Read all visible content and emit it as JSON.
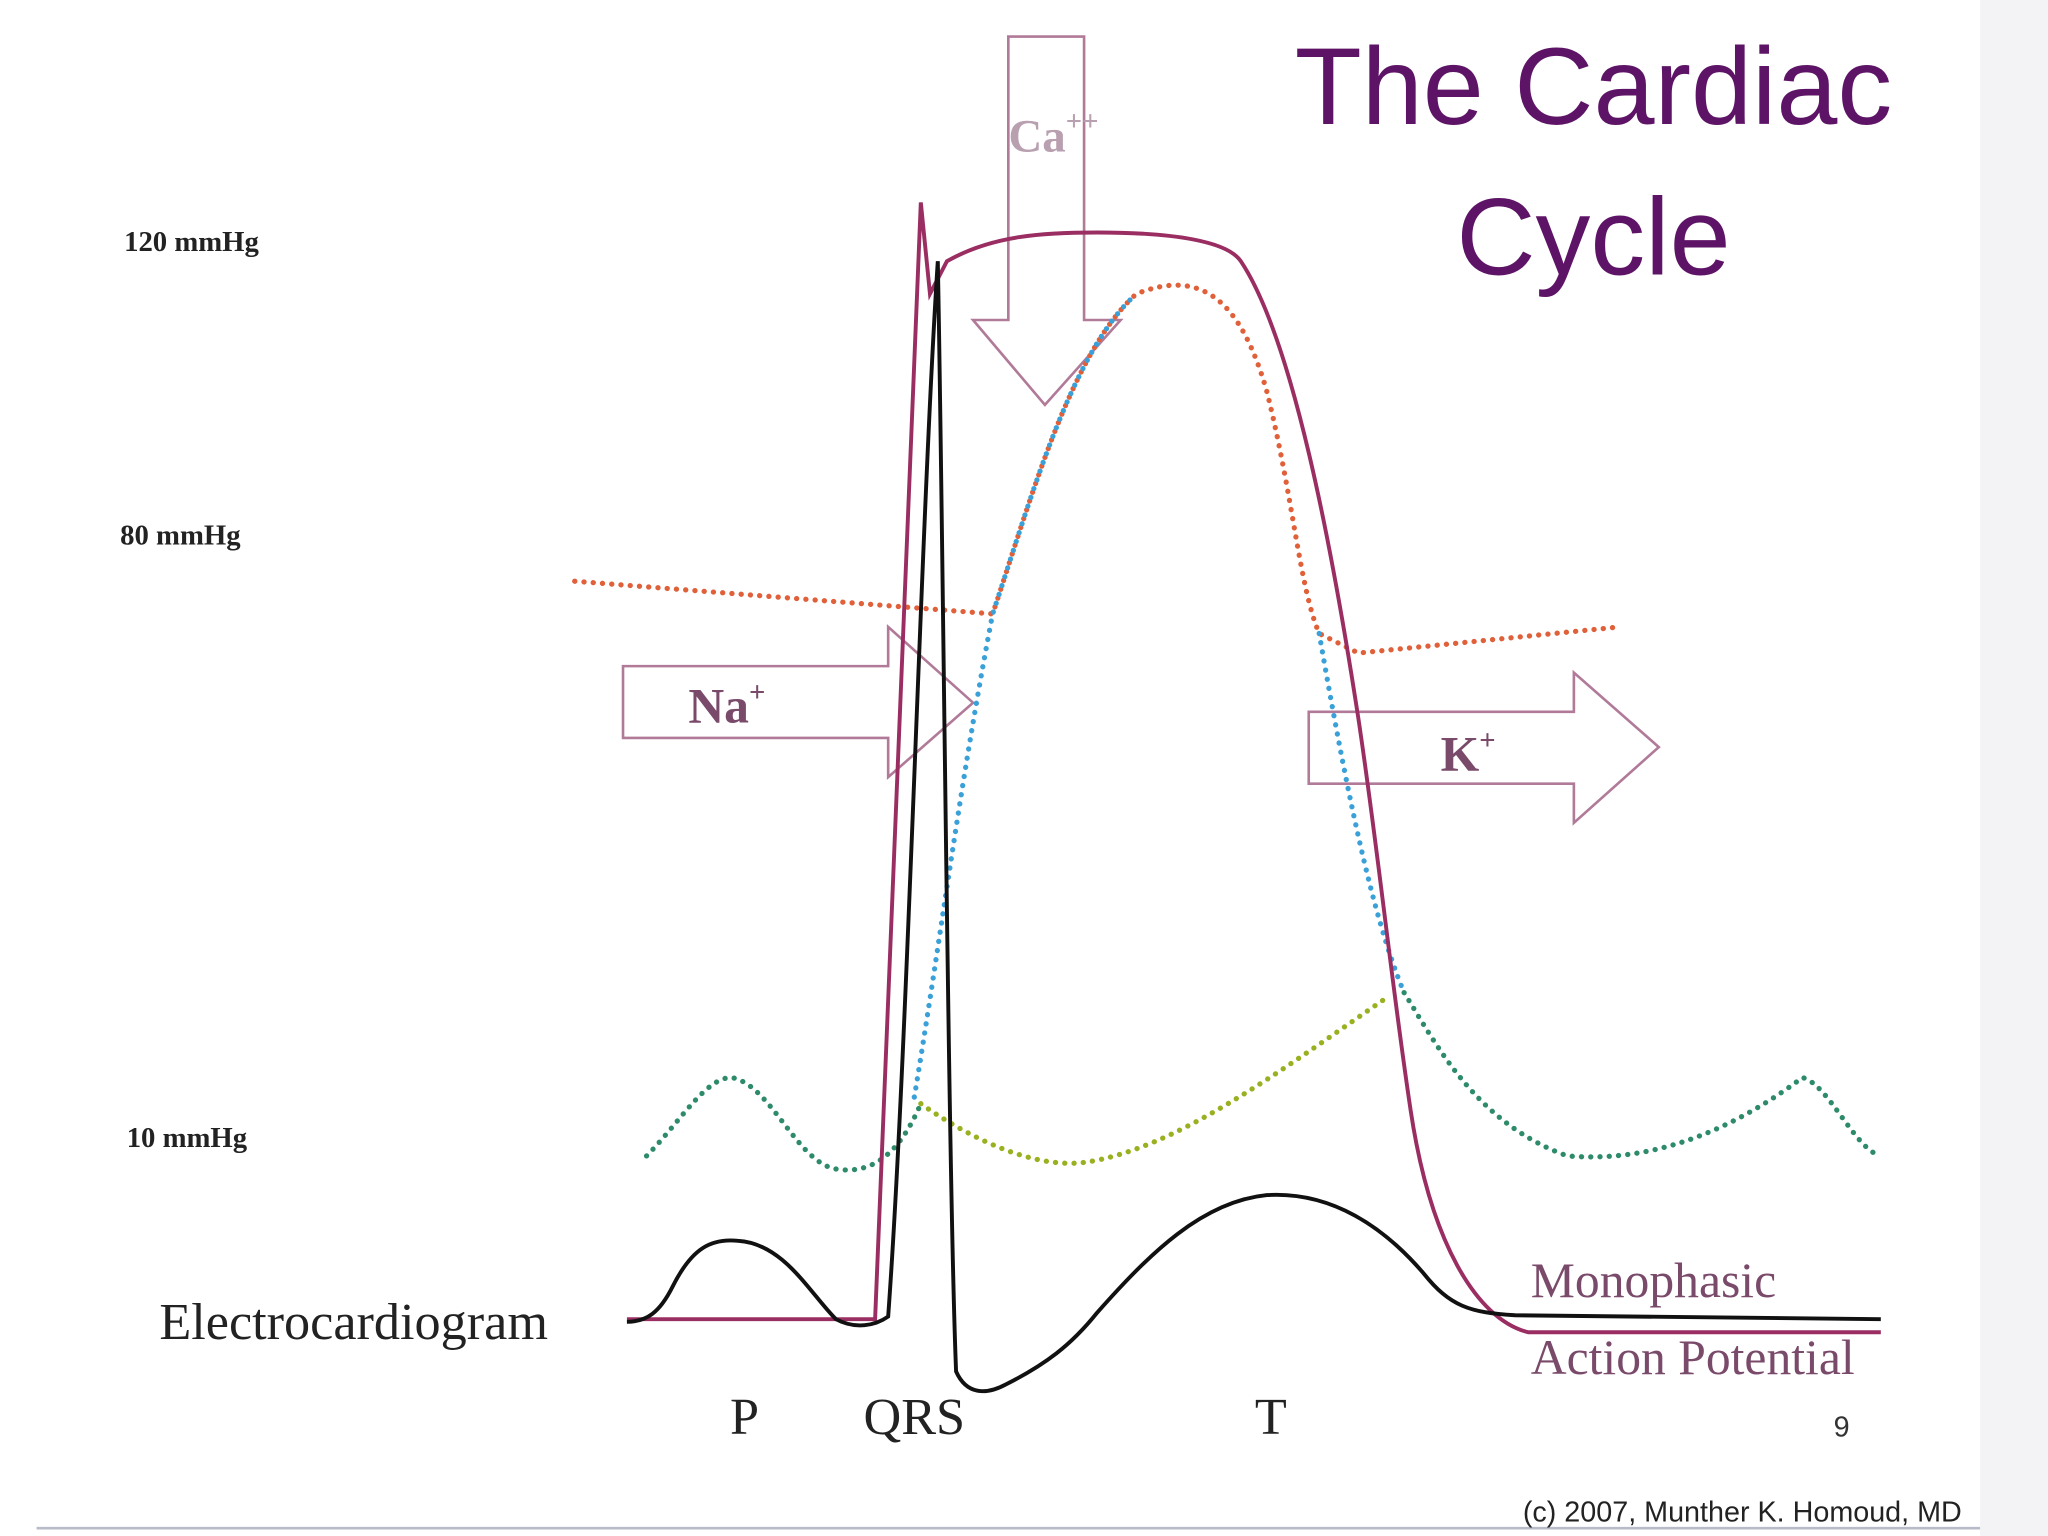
{
  "title_lines": [
    "The Cardiac",
    "Cycle"
  ],
  "pressure_labels": [
    "120 mmHg",
    "80 mmHg",
    "10 mmHg"
  ],
  "ecg_label": "Electrocardiogram",
  "waves": [
    "P",
    "QRS",
    "T"
  ],
  "ions": [
    {
      "symbol": "Na",
      "charge": "+"
    },
    {
      "symbol": "Ca",
      "charge": "++"
    },
    {
      "symbol": "K",
      "charge": "+"
    }
  ],
  "ap_label_lines": [
    "Monophasic",
    "Action Potential"
  ],
  "slide_number": "9",
  "copyright": "(c) 2007, Munther K. Homoud, MD"
}
